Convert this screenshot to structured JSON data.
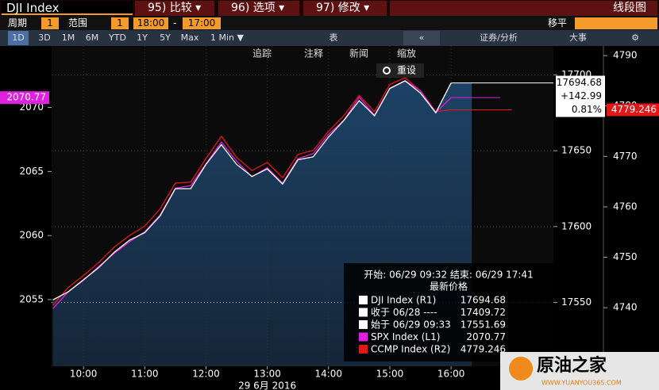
{
  "toolbar": {
    "security": "DJI Index",
    "buttons": [
      "95) 比较 ▾",
      "96) 选项 ▾",
      "97) 修改 ▾"
    ],
    "view": "线段图"
  },
  "settings": {
    "period_label": "周期",
    "period": "1",
    "range_label": "范围",
    "range": "1",
    "from": "18:00",
    "dash": "-",
    "to": "17:00",
    "shift": "移平"
  },
  "ranges": [
    "1D",
    "3D",
    "1M",
    "6M",
    "YTD",
    "1Y",
    "5Y",
    "Max",
    "1 Min ▼"
  ],
  "tools": [
    "表",
    "证券/分析",
    "大事"
  ],
  "chart_tools": [
    "追踪",
    "注释",
    "新闻",
    "缩放"
  ],
  "reset": "重设",
  "watermark": {
    "name": "原油之家",
    "url": "WWW.YUANYOU365.COM"
  },
  "chart_data": {
    "type": "line",
    "x_label": "29 6月 2016",
    "x": [
      9.5,
      9.75,
      10,
      10.25,
      10.5,
      10.75,
      11,
      11.25,
      11.5,
      11.75,
      12,
      12.25,
      12.5,
      12.75,
      13,
      13.25,
      13.5,
      13.75,
      14,
      14.25,
      14.5,
      14.75,
      15,
      15.25,
      15.5,
      15.75,
      16
    ],
    "xlim": [
      9.48,
      17.67
    ],
    "xticks": [
      {
        "value": 10,
        "label": "10:00"
      },
      {
        "value": 11,
        "label": "11:00"
      },
      {
        "value": 12,
        "label": "12:00"
      },
      {
        "value": 13,
        "label": "13:00"
      },
      {
        "value": 14,
        "label": "14:00"
      },
      {
        "value": 15,
        "label": "15:00"
      },
      {
        "value": 16,
        "label": "16:00"
      }
    ],
    "ylim": [
      2049.8,
      2074.8
    ],
    "yticks": [
      2055,
      2060,
      2065,
      2070
    ],
    "y2lim": [
      17508,
      17719
    ],
    "y2ticks": [
      17550,
      17600,
      17650,
      17700
    ],
    "y3lim": [
      4728.4,
      4791.9
    ],
    "y3ticks": [
      4740,
      4750,
      4760,
      4770,
      4780,
      4790
    ],
    "grid": true,
    "series": [
      {
        "name": "DJI Index (R1)",
        "color": "#ffffff",
        "axis": "y2",
        "values": [
          17551.69,
          17557,
          17565,
          17573,
          17583,
          17591,
          17596,
          17607,
          17625,
          17625,
          17641,
          17654,
          17641,
          17633,
          17638,
          17628,
          17644,
          17646,
          17659,
          17670,
          17683,
          17673,
          17691,
          17696,
          17688,
          17675,
          17694.68
        ]
      },
      {
        "name": "SPX Index (L1)",
        "color": "#e020e0",
        "axis": "y",
        "values": [
          2054.3,
          2055.6,
          2056.5,
          2057.6,
          2058.6,
          2059.5,
          2060.3,
          2061.6,
          2063.7,
          2063.9,
          2065.6,
          2067.3,
          2065.8,
          2064.6,
          2065.3,
          2064.1,
          2066.0,
          2066.4,
          2067.9,
          2069.0,
          2070.8,
          2069.4,
          2071.5,
          2072.1,
          2071.3,
          2069.6,
          2070.77
        ]
      },
      {
        "name": "CCMP Index (R2)",
        "color": "#e01818",
        "axis": "y3",
        "values": [
          4740.5,
          4744.0,
          4746.4,
          4749.0,
          4752.0,
          4754.3,
          4756.2,
          4759.6,
          4764.7,
          4764.9,
          4769.6,
          4774.0,
          4769.8,
          4767.2,
          4768.8,
          4765.8,
          4770.4,
          4771.2,
          4775.0,
          4778.1,
          4782.1,
          4778.9,
          4784.3,
          4785.6,
          4783.0,
          4778.9,
          4779.246
        ]
      }
    ],
    "change": "+142.99",
    "change_pct": "0.81%",
    "legend_header": "开始: 06/29 09:32 结束: 06/29 17:41",
    "legend_subheader": "最新价格",
    "stats": [
      {
        "label": "收于 06/28 ----",
        "value": 17409.72
      },
      {
        "label": "始于 06/29 09:33",
        "value": 17551.69
      }
    ]
  }
}
